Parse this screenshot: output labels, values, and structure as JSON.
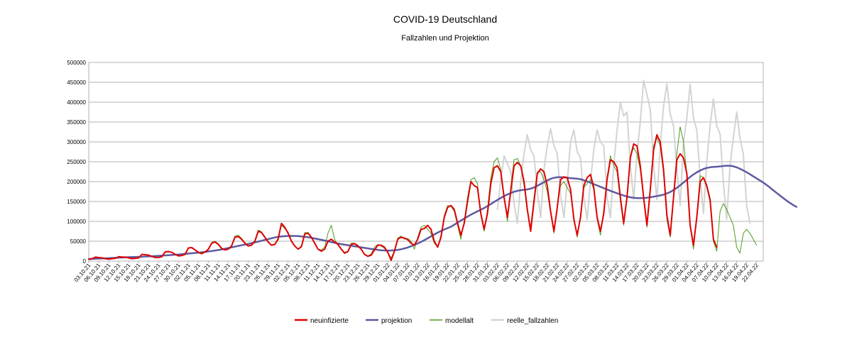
{
  "chart_data": {
    "type": "line",
    "title": "COVID-19 Deutschland",
    "subtitle": "Fallzahlen und Projektion",
    "xlabel": "",
    "ylabel": "",
    "ylim": [
      0,
      500000
    ],
    "yticks": [
      0,
      50000,
      100000,
      150000,
      200000,
      250000,
      300000,
      350000,
      400000,
      450000,
      500000
    ],
    "ytick_labels": [
      "0",
      "50000",
      "100000",
      "150000",
      "200000",
      "250000",
      "300000",
      "350000",
      "400000",
      "450000",
      "500000"
    ],
    "x_start": "03.10.21",
    "x_end": "25.04.22",
    "x_tick_step_days": 3,
    "x_tick_labels": [
      "03.10.21",
      "06.10.21",
      "09.10.21",
      "12.10.21",
      "15.10.21",
      "18.10.21",
      "21.10.21",
      "24.10.21",
      "27.10.21",
      "30.10.21",
      "02.11.21",
      "05.11.21",
      "08.11.21",
      "11.11.21",
      "14.11.21",
      "17.11.21",
      "20.11.21",
      "23.11.21",
      "26.11.21",
      "29.11.21",
      "02.12.21",
      "05.12.21",
      "08.12.21",
      "11.12.21",
      "14.12.21",
      "17.12.21",
      "20.12.21",
      "23.12.21",
      "26.12.21",
      "29.12.21",
      "01.01.22",
      "04.01.22",
      "07.01.22",
      "10.01.22",
      "13.01.22",
      "16.01.22",
      "19.01.22",
      "22.01.22",
      "25.01.22",
      "28.01.22",
      "31.01.22",
      "03.02.22",
      "06.02.22",
      "09.02.22",
      "12.02.22",
      "15.02.22",
      "18.02.22",
      "21.02.22",
      "24.02.22",
      "27.02.22",
      "02.03.22",
      "05.03.22",
      "08.03.22",
      "11.03.22",
      "14.03.22",
      "17.03.22",
      "20.03.22",
      "23.03.22",
      "26.03.22",
      "29.03.22",
      "01.04.22",
      "04.04.22",
      "07.04.22",
      "10.04.22",
      "13.04.22",
      "16.04.22",
      "19.04.22",
      "22.04.22"
    ],
    "grid": true,
    "legend_position": "bottom",
    "series": [
      {
        "name": "neuinfizierte",
        "color": "#e00000",
        "start_day": 0,
        "values": [
          5000,
          6000,
          10000,
          9000,
          8000,
          6000,
          5000,
          6000,
          7000,
          11000,
          10000,
          10000,
          8000,
          6000,
          7000,
          8000,
          17000,
          16000,
          15000,
          12000,
          9000,
          9000,
          11000,
          23000,
          24000,
          22000,
          17000,
          13000,
          14000,
          17000,
          33000,
          34000,
          28000,
          22000,
          19000,
          23000,
          30000,
          45000,
          48000,
          42000,
          32000,
          28000,
          30000,
          38000,
          60000,
          62000,
          55000,
          45000,
          38000,
          40000,
          50000,
          75000,
          72000,
          60000,
          48000,
          40000,
          42000,
          55000,
          95000,
          85000,
          70000,
          50000,
          38000,
          30000,
          36000,
          68000,
          70000,
          60000,
          45000,
          30000,
          25000,
          30000,
          50000,
          55000,
          48000,
          42000,
          30000,
          20000,
          24000,
          42000,
          44000,
          38000,
          30000,
          17000,
          12000,
          15000,
          28000,
          40000,
          40000,
          35000,
          22000,
          2000,
          25000,
          55000,
          60000,
          58000,
          54000,
          45000,
          40000,
          55000,
          80000,
          82000,
          90000,
          80000,
          50000,
          35000,
          60000,
          110000,
          135000,
          140000,
          130000,
          95000,
          65000,
          95000,
          150000,
          200000,
          190000,
          185000,
          120000,
          80000,
          120000,
          195000,
          235000,
          240000,
          225000,
          160000,
          110000,
          175000,
          240000,
          248000,
          240000,
          200000,
          130000,
          75000,
          150000,
          220000,
          232000,
          225000,
          190000,
          125000,
          75000,
          135000,
          205000,
          212000,
          210000,
          180000,
          105000,
          65000,
          110000,
          190000,
          210000,
          218000,
          185000,
          110000,
          75000,
          120000,
          205000,
          255000,
          250000,
          235000,
          160000,
          95000,
          160000,
          260000,
          295000,
          290000,
          240000,
          160000,
          90000,
          180000,
          280000,
          318000,
          300000,
          230000,
          115000,
          65000,
          160000,
          255000,
          270000,
          260000,
          220000,
          90000,
          40000,
          110000,
          200000,
          210000,
          190000,
          155000,
          55000,
          35000
        ]
      },
      {
        "name": "projektion",
        "color": "#5e5aa0",
        "start_day": 0,
        "values": [
          5000,
          5500,
          6000,
          6300,
          6600,
          7000,
          7400,
          7800,
          8200,
          8600,
          9000,
          9400,
          9800,
          10100,
          10400,
          10700,
          11000,
          11400,
          11800,
          12200,
          12700,
          13200,
          13700,
          14200,
          14800,
          15400,
          16000,
          16600,
          17300,
          18100,
          18900,
          19700,
          20500,
          21300,
          22100,
          23100,
          24200,
          25400,
          26600,
          27800,
          29300,
          31000,
          32900,
          34700,
          36500,
          38200,
          39900,
          41500,
          43200,
          45000,
          47000,
          49100,
          51200,
          53200,
          55300,
          57400,
          59500,
          61000,
          62000,
          62700,
          63200,
          63400,
          63300,
          62800,
          62100,
          61200,
          60000,
          58600,
          57000,
          55300,
          53600,
          51800,
          50000,
          48000,
          46000,
          44300,
          42700,
          41300,
          40000,
          38700,
          37400,
          36100,
          34700,
          33300,
          32000,
          30700,
          29400,
          28200,
          27300,
          26700,
          26500,
          26700,
          27300,
          28300,
          29800,
          31800,
          34300,
          37300,
          40700,
          44400,
          48300,
          52600,
          57300,
          62200,
          67000,
          71600,
          75800,
          79500,
          83000,
          86500,
          91500,
          97000,
          102000,
          107000,
          111900,
          116700,
          121100,
          125100,
          129200,
          133600,
          138500,
          143600,
          148800,
          154000,
          159000,
          163600,
          167700,
          171300,
          174400,
          176800,
          178400,
          179400,
          180400,
          182300,
          185300,
          189400,
          194000,
          198600,
          203000,
          206900,
          209700,
          211100,
          211300,
          210800,
          209800,
          208700,
          208100,
          207500,
          206100,
          203600,
          200500,
          197300,
          193800,
          190300,
          186900,
          183500,
          180200,
          177000,
          173800,
          170700,
          167800,
          165000,
          162500,
          160500,
          159200,
          158600,
          158400,
          158700,
          159500,
          160700,
          162100,
          163600,
          165200,
          167300,
          170300,
          174000,
          178800,
          184500,
          190900,
          197700,
          204800,
          211700,
          218000,
          223400,
          227900,
          231700,
          234400,
          236000,
          236900,
          237500,
          238400,
          239300,
          240000,
          240000,
          238500,
          235900,
          232400,
          228300,
          223600,
          218500,
          213300,
          208200,
          203100,
          197600,
          191600,
          185200,
          178400,
          171700,
          165100,
          158700,
          152400,
          146600,
          141200,
          136400
        ]
      },
      {
        "name": "modellalt",
        "color": "#4e9a1e",
        "start_day": 0,
        "values": [
          6000,
          7000,
          9000,
          8500,
          7000,
          6000,
          5500,
          5500,
          6500,
          10500,
          11000,
          9500,
          8000,
          6500,
          6500,
          8000,
          16000,
          16500,
          14000,
          11000,
          9000,
          9000,
          12000,
          24000,
          25000,
          21000,
          16000,
          13000,
          14000,
          18000,
          33000,
          35000,
          29000,
          22000,
          18000,
          22000,
          31000,
          47000,
          50000,
          44000,
          33000,
          28000,
          30000,
          40000,
          63000,
          65000,
          57000,
          46000,
          38000,
          40000,
          52000,
          78000,
          74000,
          62000,
          48000,
          40000,
          43000,
          58000,
          90000,
          82000,
          73000,
          52000,
          37000,
          30000,
          38000,
          72000,
          72000,
          62000,
          45000,
          30000,
          28000,
          35000,
          70000,
          90000,
          55000,
          40000,
          30000,
          22000,
          25000,
          45000,
          45000,
          40000,
          30000,
          18000,
          13000,
          18000,
          35000,
          42000,
          38000,
          32000,
          22000,
          8000,
          25000,
          58000,
          63000,
          55000,
          57000,
          50000,
          30000,
          60000,
          85000,
          90000,
          80000,
          70000,
          45000,
          35000,
          65000,
          115000,
          140000,
          138000,
          125000,
          90000,
          55000,
          100000,
          160000,
          205000,
          210000,
          195000,
          115000,
          75000,
          130000,
          210000,
          250000,
          260000,
          230000,
          160000,
          100000,
          185000,
          255000,
          258000,
          240000,
          190000,
          125000,
          85000,
          160000,
          225000,
          225000,
          205000,
          175000,
          120000,
          70000,
          140000,
          190000,
          200000,
          185000,
          170000,
          110000,
          60000,
          115000,
          185000,
          195000,
          205000,
          180000,
          105000,
          65000,
          130000,
          210000,
          265000,
          240000,
          225000,
          150000,
          90000,
          165000,
          265000,
          285000,
          270000,
          230000,
          155000,
          85000,
          180000,
          290000,
          310000,
          290000,
          220000,
          105000,
          60000,
          165000,
          270000,
          338000,
          300000,
          220000,
          90000,
          30000,
          110000,
          215000,
          210000,
          185000,
          150000,
          50000,
          25000,
          125000,
          145000,
          130000,
          110000,
          90000,
          35000,
          20000,
          70000,
          80000,
          70000,
          55000,
          40000
        ]
      },
      {
        "name": "reelle_fallzahlen",
        "color": "#d3d3d3",
        "start_day": 123,
        "values": [
          130000,
          205000,
          265000,
          245000,
          225000,
          145000,
          95000,
          200000,
          270000,
          318000,
          280000,
          265000,
          175000,
          110000,
          230000,
          290000,
          333000,
          290000,
          270000,
          165000,
          110000,
          200000,
          300000,
          330000,
          275000,
          260000,
          160000,
          105000,
          200000,
          280000,
          330000,
          300000,
          290000,
          160000,
          110000,
          240000,
          330000,
          400000,
          365000,
          375000,
          240000,
          155000,
          270000,
          350000,
          455000,
          420000,
          380000,
          240000,
          155000,
          290000,
          390000,
          446000,
          370000,
          340000,
          230000,
          140000,
          300000,
          360000,
          445000,
          360000,
          330000,
          210000,
          120000,
          250000,
          340000,
          408000,
          340000,
          320000,
          200000,
          105000,
          240000,
          310000,
          375000,
          310000,
          270000,
          140000,
          95000
        ]
      }
    ]
  }
}
